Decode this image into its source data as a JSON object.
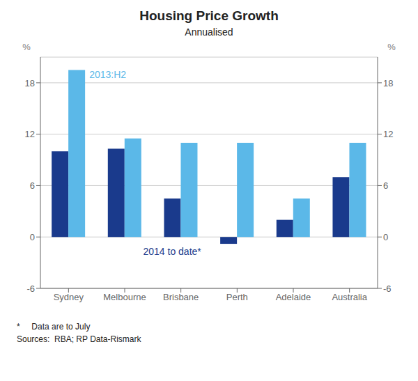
{
  "chart_data": {
    "type": "bar",
    "title": "Housing Price Growth",
    "subtitle": "Annualised",
    "categories": [
      "Sydney",
      "Melbourne",
      "Brisbane",
      "Perth",
      "Adelaide",
      "Australia"
    ],
    "series": [
      {
        "name": "2014 to date*",
        "color": "#1A3A8C",
        "values": [
          10.0,
          10.3,
          4.5,
          -0.8,
          2.0,
          7.0
        ]
      },
      {
        "name": "2013:H2",
        "color": "#5BB8E8",
        "values": [
          19.5,
          11.5,
          11.0,
          11.0,
          4.5,
          11.0
        ]
      }
    ],
    "ylim": [
      -6,
      21
    ],
    "yticks": [
      -6,
      0,
      6,
      12,
      18
    ],
    "y2lim": [
      -6,
      21
    ],
    "y2ticks": [
      -6,
      0,
      6,
      12,
      18
    ],
    "ylabel": "%",
    "y2label": "%",
    "grid": true,
    "footnotes": [
      "*     Data are to July",
      "Sources:  RBA; RP Data-Rismark"
    ]
  }
}
